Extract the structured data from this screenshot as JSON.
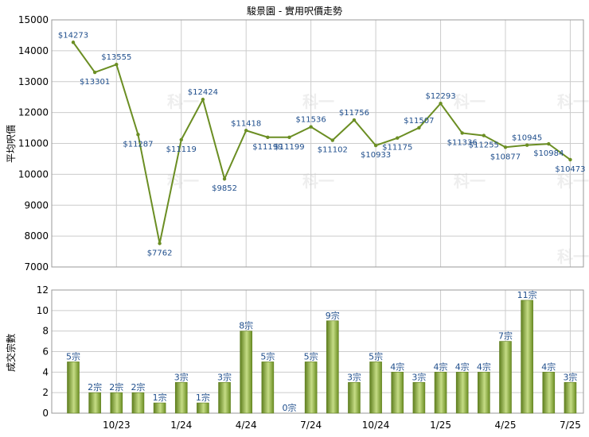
{
  "title": "駿景園 - 實用呎價走勢",
  "top_ylabel": "平均呎價",
  "bottom_ylabel": "成交宗數",
  "x_tick_labels": [
    "10/23",
    "1/24",
    "4/24",
    "7/24",
    "10/24",
    "1/25",
    "4/25",
    "7/25"
  ],
  "watermark": "科一",
  "colors": {
    "line": "#6b8e23",
    "point_label": "#1f4e8c",
    "bar_dark": "#5f7f1f",
    "bar_light": "#c5dc85",
    "grid": "#cccccc"
  },
  "chart_data": [
    {
      "type": "line",
      "title": "駿景園 - 實用呎價走勢",
      "ylabel": "平均呎價",
      "ylim": [
        7000,
        15000
      ],
      "yticks": [
        7000,
        8000,
        9000,
        10000,
        11000,
        12000,
        13000,
        14000,
        15000
      ],
      "x": [
        "2023-08",
        "2023-09",
        "2023-10",
        "2023-11",
        "2023-12",
        "2024-01",
        "2024-02",
        "2024-03",
        "2024-04",
        "2024-05",
        "2024-06",
        "2024-07",
        "2024-08",
        "2024-09",
        "2024-10",
        "2024-11",
        "2024-12",
        "2025-01",
        "2025-02",
        "2025-03",
        "2025-04",
        "2025-05",
        "2025-06",
        "2025-07"
      ],
      "values": [
        14273,
        13301,
        13555,
        11287,
        7762,
        11119,
        12424,
        9852,
        11418,
        11199,
        11199,
        11536,
        11102,
        11756,
        10933,
        11175,
        11507,
        12293,
        11336,
        11255,
        10877,
        10945,
        10984,
        10473
      ],
      "labels": [
        "$14273",
        "$13301",
        "$13555",
        "$11287",
        "$7762",
        "$11119",
        "$12424",
        "$9852",
        "$11418",
        "$11199",
        "$11199",
        "$11536",
        "$11102",
        "$11756",
        "$10933",
        "$11175",
        "$11507",
        "$12293",
        "$11336",
        "$11255",
        "$10877",
        "$10945",
        "$10984",
        "$10473"
      ],
      "grid": true
    },
    {
      "type": "bar",
      "ylabel": "成交宗數",
      "ylim": [
        0,
        12
      ],
      "yticks": [
        0,
        2,
        4,
        6,
        8,
        10,
        12
      ],
      "x": [
        "2023-08",
        "2023-09",
        "2023-10",
        "2023-11",
        "2023-12",
        "2024-01",
        "2024-02",
        "2024-03",
        "2024-04",
        "2024-05",
        "2024-06",
        "2024-07",
        "2024-08",
        "2024-09",
        "2024-10",
        "2024-11",
        "2024-12",
        "2025-01",
        "2025-02",
        "2025-03",
        "2025-04",
        "2025-05",
        "2025-06",
        "2025-07"
      ],
      "values": [
        5,
        2,
        2,
        2,
        1,
        3,
        1,
        3,
        8,
        5,
        0,
        5,
        9,
        3,
        5,
        4,
        3,
        4,
        4,
        4,
        7,
        11,
        4,
        3
      ],
      "labels": [
        "5宗",
        "2宗",
        "2宗",
        "2宗",
        "1宗",
        "3宗",
        "1宗",
        "3宗",
        "8宗",
        "5宗",
        "0宗",
        "5宗",
        "9宗",
        "3宗",
        "5宗",
        "4宗",
        "3宗",
        "4宗",
        "4宗",
        "4宗",
        "7宗",
        "11宗",
        "4宗",
        "3宗"
      ],
      "grid": true
    }
  ]
}
